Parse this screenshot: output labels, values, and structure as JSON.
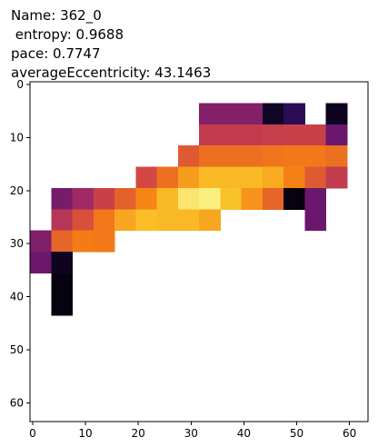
{
  "chart_data": {
    "type": "heatmap",
    "title_lines": [
      "Name: 362_0",
      " entropy: 0.9688",
      "pace: 0.7747",
      "averageEccentricity: 43.1463"
    ],
    "colormap": "inferno",
    "xlim": [
      -0.5,
      63.5
    ],
    "ylim": [
      63.5,
      -0.5
    ],
    "xticks": [
      0,
      10,
      20,
      30,
      40,
      50,
      60
    ],
    "yticks": [
      0,
      10,
      20,
      30,
      40,
      50,
      60
    ],
    "z": [
      [
        null,
        null,
        null,
        null,
        null,
        null,
        null,
        null,
        null,
        null,
        null,
        null,
        null,
        null,
        null,
        null
      ],
      [
        null,
        null,
        null,
        null,
        null,
        null,
        null,
        null,
        0.36,
        0.36,
        0.36,
        0.06,
        0.15,
        null,
        0.05,
        null
      ],
      [
        null,
        null,
        null,
        null,
        null,
        null,
        null,
        null,
        0.52,
        0.52,
        0.52,
        0.53,
        0.54,
        0.54,
        0.3,
        null
      ],
      [
        null,
        null,
        null,
        null,
        null,
        null,
        null,
        0.62,
        0.68,
        0.68,
        0.68,
        0.69,
        0.7,
        0.7,
        0.68,
        null
      ],
      [
        null,
        null,
        null,
        null,
        null,
        0.57,
        0.68,
        0.78,
        0.84,
        0.84,
        0.84,
        0.81,
        0.72,
        0.62,
        0.52,
        null
      ],
      [
        null,
        0.33,
        0.43,
        0.54,
        0.64,
        0.73,
        0.84,
        0.94,
        0.96,
        0.86,
        0.76,
        0.65,
        0.02,
        0.3,
        null,
        null
      ],
      [
        null,
        0.49,
        0.59,
        0.7,
        0.8,
        0.85,
        0.84,
        0.84,
        0.8,
        null,
        null,
        null,
        null,
        0.3,
        null,
        null
      ],
      [
        0.35,
        0.65,
        0.71,
        0.7,
        null,
        null,
        null,
        null,
        null,
        null,
        null,
        null,
        null,
        null,
        null,
        null
      ],
      [
        0.3,
        0.05,
        null,
        null,
        null,
        null,
        null,
        null,
        null,
        null,
        null,
        null,
        null,
        null,
        null,
        null
      ],
      [
        null,
        0.02,
        null,
        null,
        null,
        null,
        null,
        null,
        null,
        null,
        null,
        null,
        null,
        null,
        null,
        null
      ],
      [
        null,
        0.02,
        null,
        null,
        null,
        null,
        null,
        null,
        null,
        null,
        null,
        null,
        null,
        null,
        null,
        null
      ],
      [
        null,
        null,
        null,
        null,
        null,
        null,
        null,
        null,
        null,
        null,
        null,
        null,
        null,
        null,
        null,
        null
      ],
      [
        null,
        null,
        null,
        null,
        null,
        null,
        null,
        null,
        null,
        null,
        null,
        null,
        null,
        null,
        null,
        null
      ],
      [
        null,
        null,
        null,
        null,
        null,
        null,
        null,
        null,
        null,
        null,
        null,
        null,
        null,
        null,
        null,
        null
      ],
      [
        null,
        null,
        null,
        null,
        null,
        null,
        null,
        null,
        null,
        null,
        null,
        null,
        null,
        null,
        null,
        null
      ],
      [
        null,
        null,
        null,
        null,
        null,
        null,
        null,
        null,
        null,
        null,
        null,
        null,
        null,
        null,
        null,
        null
      ]
    ]
  }
}
